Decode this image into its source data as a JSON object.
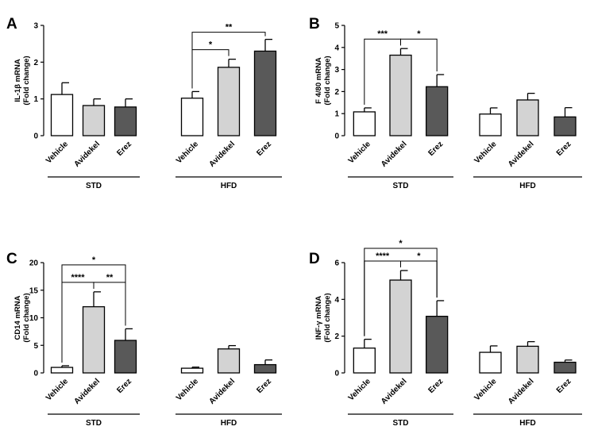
{
  "chart_data": [
    {
      "type": "bar",
      "panel": "A",
      "ylabel": "IL-1β mRNA",
      "ylabel2": "(Fold change)",
      "ylim": [
        0,
        3
      ],
      "yticks": [
        "0",
        "1",
        "2",
        "3"
      ],
      "yticks_values": [
        0,
        1,
        2,
        3
      ],
      "groups": [
        {
          "name": "STD",
          "categories": [
            "Vehicle",
            "Avidekel",
            "Erez"
          ],
          "values": [
            1.12,
            0.82,
            0.78
          ],
          "errors": [
            0.32,
            0.18,
            0.22
          ]
        },
        {
          "name": "HFD",
          "categories": [
            "Vehicle",
            "Avidekel",
            "Erez"
          ],
          "values": [
            1.02,
            1.86,
            2.3
          ],
          "errors": [
            0.18,
            0.22,
            0.32
          ]
        }
      ],
      "comparisons": [
        {
          "group": 1,
          "from": 0,
          "to": 1,
          "label": "*",
          "level": 0
        },
        {
          "group": 1,
          "from": 0,
          "to": 2,
          "label": "**",
          "level": 1
        }
      ]
    },
    {
      "type": "bar",
      "panel": "B",
      "ylabel": "F 4/80 mRNA",
      "ylabel2": "(Fold change)",
      "ylim": [
        0,
        5
      ],
      "yticks": [
        "0",
        "1",
        "2",
        "3",
        "4",
        "5"
      ],
      "yticks_values": [
        0,
        1,
        2,
        3,
        4,
        5
      ],
      "groups": [
        {
          "name": "STD",
          "categories": [
            "Vehicle",
            "Avidekel",
            "Erez"
          ],
          "values": [
            1.08,
            3.65,
            2.22
          ],
          "errors": [
            0.18,
            0.3,
            0.55
          ]
        },
        {
          "name": "HFD",
          "categories": [
            "Vehicle",
            "Avidekel",
            "Erez"
          ],
          "values": [
            0.98,
            1.62,
            0.85
          ],
          "errors": [
            0.28,
            0.3,
            0.42
          ]
        }
      ],
      "comparisons": [
        {
          "group": 0,
          "from": 0,
          "to": 1,
          "label": "***",
          "level": 0
        },
        {
          "group": 0,
          "from": 1,
          "to": 2,
          "label": "*",
          "level": 0
        }
      ]
    },
    {
      "type": "bar",
      "panel": "C",
      "ylabel": "CD14 mRNA",
      "ylabel2": "(Fold change)",
      "ylim": [
        0,
        20
      ],
      "yticks": [
        "0",
        "5",
        "10",
        "15",
        "20"
      ],
      "yticks_values": [
        0,
        5,
        10,
        15,
        20
      ],
      "groups": [
        {
          "name": "STD",
          "categories": [
            "Vehicle",
            "Avidekel",
            "Erez"
          ],
          "values": [
            1.0,
            12.0,
            5.9
          ],
          "errors": [
            0.3,
            2.7,
            2.1
          ]
        },
        {
          "name": "HFD",
          "categories": [
            "Vehicle",
            "Avidekel",
            "Erez"
          ],
          "values": [
            0.85,
            4.35,
            1.5
          ],
          "errors": [
            0.2,
            0.6,
            0.85
          ]
        }
      ],
      "comparisons": [
        {
          "group": 0,
          "from": 0,
          "to": 1,
          "label": "****",
          "level": 0
        },
        {
          "group": 0,
          "from": 1,
          "to": 2,
          "label": "**",
          "level": 0
        },
        {
          "group": 0,
          "from": 0,
          "to": 2,
          "label": "*",
          "level": 1
        }
      ]
    },
    {
      "type": "bar",
      "panel": "D",
      "ylabel": "INF-γ mRNA",
      "ylabel2": "(Fold change)",
      "ylim": [
        0,
        6
      ],
      "yticks": [
        "0",
        "2",
        "4",
        "6"
      ],
      "yticks_values": [
        0,
        2,
        4,
        6
      ],
      "groups": [
        {
          "name": "STD",
          "categories": [
            "Vehicle",
            "Avidekel",
            "Erez"
          ],
          "values": [
            1.35,
            5.05,
            3.08
          ],
          "errors": [
            0.48,
            0.52,
            0.85
          ]
        },
        {
          "name": "HFD",
          "categories": [
            "Vehicle",
            "Avidekel",
            "Erez"
          ],
          "values": [
            1.12,
            1.45,
            0.58
          ],
          "errors": [
            0.35,
            0.25,
            0.12
          ]
        }
      ],
      "comparisons": [
        {
          "group": 0,
          "from": 0,
          "to": 1,
          "label": "****",
          "level": 0
        },
        {
          "group": 0,
          "from": 1,
          "to": 2,
          "label": "*",
          "level": 0
        },
        {
          "group": 0,
          "from": 0,
          "to": 2,
          "label": "*",
          "level": 1
        }
      ]
    }
  ],
  "bar_colors": [
    "#ffffff",
    "#d3d3d3",
    "#595959"
  ]
}
